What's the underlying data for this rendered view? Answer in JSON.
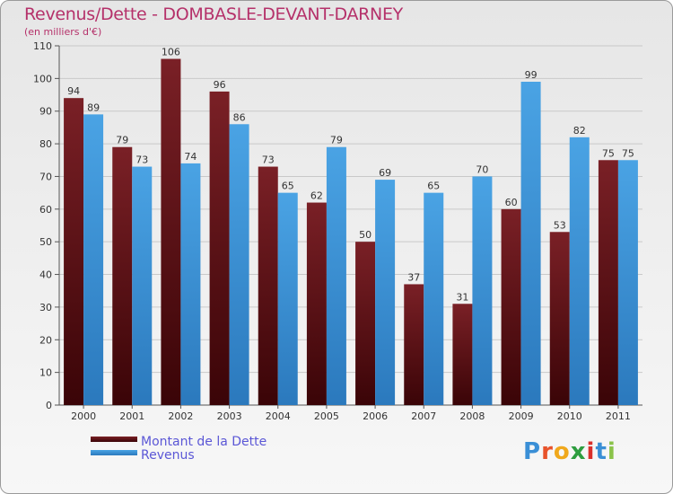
{
  "header": {
    "title": "Revenus/Dette - DOMBASLE-DEVANT-DARNEY",
    "subtitle": "(en milliers d'€)"
  },
  "legend": {
    "dette_label": "Montant de la Dette",
    "revenus_label": "Revenus"
  },
  "logo": {
    "letters": [
      "P",
      "r",
      "o",
      "x",
      "i",
      "t",
      "i"
    ],
    "colors": [
      "#3a8fd6",
      "#e8532b",
      "#f0a81c",
      "#2e9d3f",
      "#d9302c",
      "#3a8fd6",
      "#8bc34a"
    ]
  },
  "colors": {
    "dette": "#7a2026",
    "dette_dark": "#3a0407",
    "revenus": "#4aa3e4",
    "revenus_dark": "#2b79bd",
    "title": "#b5316a",
    "legend_text": "#5b57d6"
  },
  "chart_data": {
    "type": "bar",
    "categories": [
      "2000",
      "2001",
      "2002",
      "2003",
      "2004",
      "2005",
      "2006",
      "2007",
      "2008",
      "2009",
      "2010",
      "2011"
    ],
    "series": [
      {
        "name": "Montant de la Dette",
        "values": [
          94,
          79,
          106,
          96,
          73,
          62,
          50,
          37,
          31,
          60,
          53,
          75
        ]
      },
      {
        "name": "Revenus",
        "values": [
          89,
          73,
          74,
          86,
          65,
          79,
          69,
          65,
          70,
          99,
          82,
          75
        ]
      }
    ],
    "yticks": [
      0,
      10,
      20,
      30,
      40,
      50,
      60,
      70,
      80,
      90,
      100,
      110
    ],
    "ylim": [
      0,
      110
    ],
    "title": "Revenus/Dette - DOMBASLE-DEVANT-DARNEY",
    "ylabel": "(en milliers d'€)",
    "xlabel": "",
    "grid": true
  }
}
